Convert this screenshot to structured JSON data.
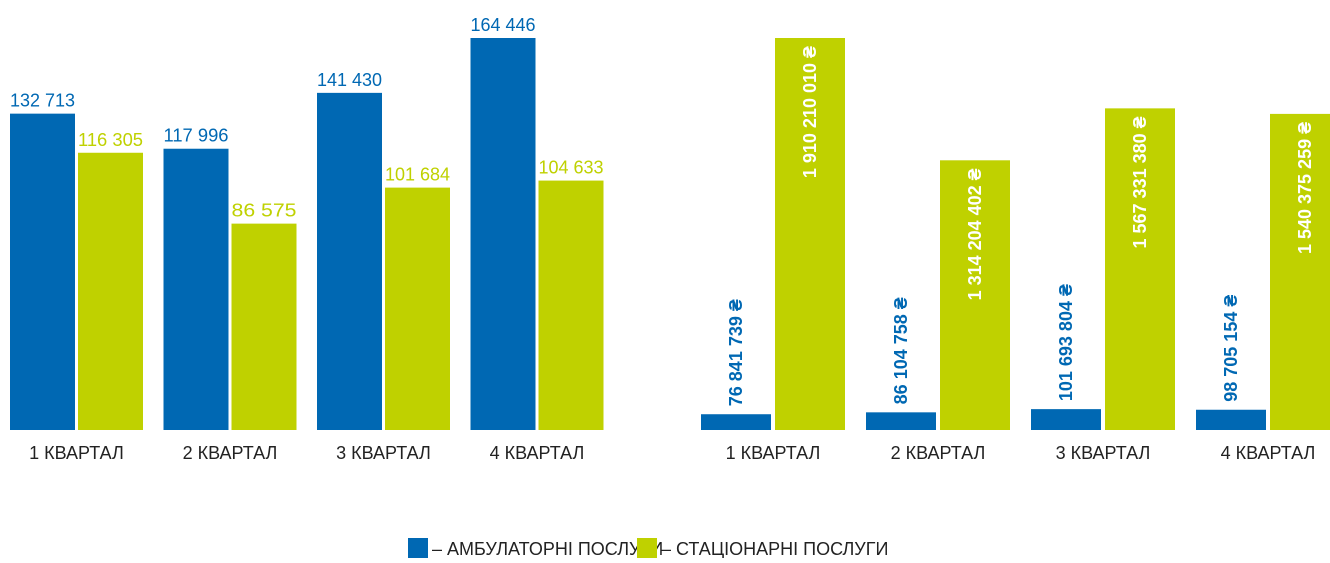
{
  "chart_data": [
    {
      "type": "bar",
      "categories": [
        "1 КВАРТАЛ",
        "2 КВАРТАЛ",
        "3 КВАРТАЛ",
        "4 КВАРТАЛ"
      ],
      "series": [
        {
          "name": "– АМБУЛАТОРНІ ПОСЛУГИ",
          "color": "#0068b3",
          "values": [
            132713,
            117996,
            141430,
            164446
          ],
          "value_labels": [
            "132 713",
            "117 996",
            "141 430",
            "164 446"
          ]
        },
        {
          "name": "– СТАЦІОНАРНІ ПОСЛУГИ",
          "color": "#bfd100",
          "values": [
            116305,
            86575,
            101684,
            104633
          ],
          "value_labels": [
            "116 305",
            "86 575",
            "101 684",
            "104 633"
          ]
        }
      ]
    },
    {
      "type": "bar",
      "categories": [
        "1 КВАРТАЛ",
        "2 КВАРТАЛ",
        "3 КВАРТАЛ",
        "4 КВАРТАЛ"
      ],
      "series": [
        {
          "color": "#0068b3",
          "values": [
            76841739,
            86104758,
            101693804,
            98705154
          ],
          "value_labels": [
            "76 841 739 ₴",
            "86 104 758 ₴",
            "101 693 804 ₴",
            "98 705 154 ₴"
          ]
        },
        {
          "color": "#bfd100",
          "values": [
            1910210010,
            1314204402,
            1567331380,
            1540375259
          ],
          "value_labels": [
            "1 910 210 010 ₴",
            "1 314 204 402 ₴",
            "1 567 331 380 ₴",
            "1 540 375 259 ₴"
          ]
        }
      ]
    }
  ]
}
